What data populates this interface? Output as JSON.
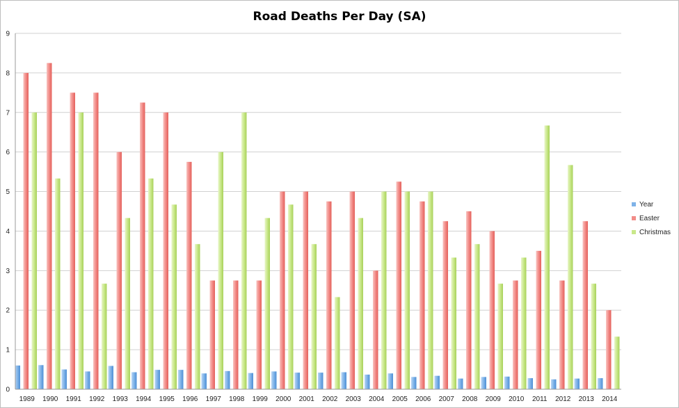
{
  "chart_data": {
    "type": "bar",
    "title": "Road Deaths Per Day (SA)",
    "xlabel": "",
    "ylabel": "",
    "ylim": [
      0,
      9
    ],
    "yticks": [
      "0",
      "1",
      "2",
      "3",
      "4",
      "5",
      "6",
      "7",
      "8",
      "9"
    ],
    "grid": true,
    "legend_position": "right",
    "categories": [
      "1989",
      "1990",
      "1991",
      "1992",
      "1993",
      "1994",
      "1995",
      "1996",
      "1997",
      "1998",
      "1999",
      "2000",
      "2001",
      "2002",
      "2003",
      "2004",
      "2005",
      "2006",
      "2007",
      "2008",
      "2009",
      "2010",
      "2011",
      "2012",
      "2013",
      "2014"
    ],
    "series": [
      {
        "name": "Year",
        "color": "#7fb3e8",
        "values": [
          0.6,
          0.61,
          0.5,
          0.45,
          0.59,
          0.43,
          0.49,
          0.49,
          0.4,
          0.46,
          0.41,
          0.45,
          0.42,
          0.42,
          0.43,
          0.37,
          0.4,
          0.31,
          0.34,
          0.27,
          0.31,
          0.32,
          0.28,
          0.25,
          0.27,
          0.28
        ]
      },
      {
        "name": "Easter",
        "color": "#f28c88",
        "values": [
          8,
          8.25,
          7.5,
          7.5,
          6,
          7.25,
          7,
          5.75,
          2.75,
          2.75,
          2.75,
          5,
          5,
          4.75,
          5,
          3,
          5.25,
          4.75,
          4.25,
          4.5,
          4,
          2.75,
          3.5,
          2.75,
          4.25,
          2
        ]
      },
      {
        "name": "Christmas",
        "color": "#c9e88a",
        "values": [
          7,
          5.33,
          7,
          2.67,
          4.33,
          5.33,
          4.67,
          3.67,
          6,
          7,
          4.33,
          4.67,
          3.67,
          2.33,
          4.33,
          5,
          5,
          5,
          3.33,
          3.67,
          2.67,
          3.33,
          6.67,
          5.67,
          2.67,
          1.33
        ]
      }
    ]
  }
}
